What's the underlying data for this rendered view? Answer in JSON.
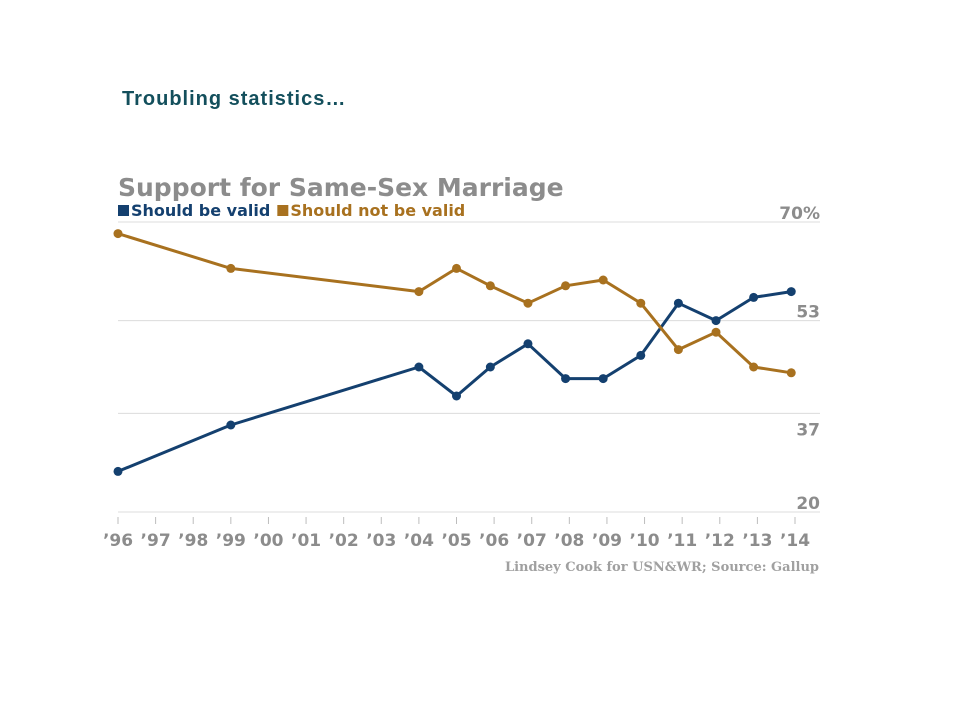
{
  "slide": {
    "title": "Troubling statistics…"
  },
  "chart_data": {
    "type": "line",
    "title": "Support for Same-Sex Marriage",
    "source": "Lindsey Cook for USN&WR; Source: Gallup",
    "x": [
      1996,
      1999,
      2004,
      2005,
      2005.9,
      2006.9,
      2007.9,
      2008.9,
      2009.9,
      2010.9,
      2011.9,
      2012.9,
      2013.9
    ],
    "x_tick_labels": [
      "’96",
      "’97",
      "’98",
      "’99",
      "’00",
      "’01",
      "’02",
      "’03",
      "’04",
      "’05",
      "’06",
      "’07",
      "’08",
      "’09",
      "’10",
      "’11",
      "’12",
      "’13",
      "’14"
    ],
    "y_tick_labels": [
      "70%",
      "53",
      "37",
      "20"
    ],
    "ylim": [
      20,
      70
    ],
    "grid": true,
    "legend_position": "top-left",
    "series": [
      {
        "name": "Should be valid",
        "color": "#14406f",
        "values": [
          27,
          35,
          45,
          40,
          45,
          49,
          43,
          43,
          47,
          56,
          53,
          57,
          58
        ]
      },
      {
        "name": "Should not be valid",
        "color": "#a8711f",
        "values": [
          68,
          62,
          58,
          62,
          59,
          56,
          59,
          60,
          56,
          48,
          51,
          45,
          44
        ]
      }
    ]
  }
}
